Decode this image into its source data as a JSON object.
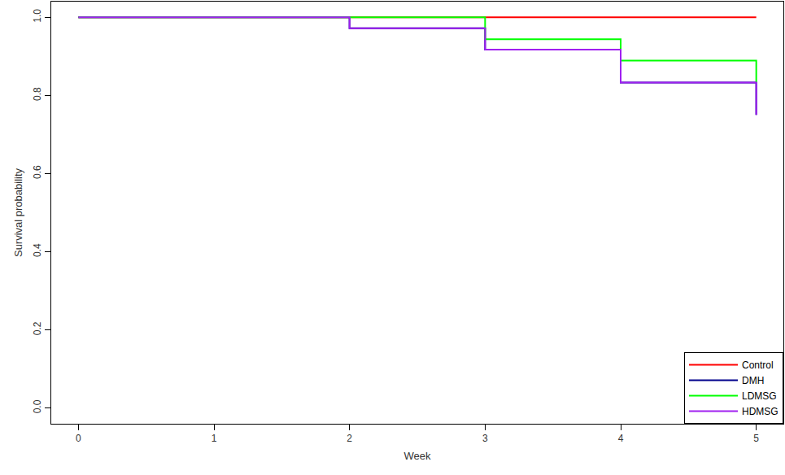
{
  "chart_data": {
    "type": "step",
    "x_label": "Week",
    "y_label": "Survival probability",
    "x": [
      0,
      1,
      2,
      3,
      4,
      5
    ],
    "series": [
      {
        "name": "Control",
        "color": "#ff0000",
        "values": [
          1,
          1,
          1,
          1,
          1,
          1
        ]
      },
      {
        "name": "DMH",
        "color": "#00008b",
        "values": [
          1,
          1,
          0.972,
          0.917,
          0.833,
          0.75
        ]
      },
      {
        "name": "LDMSG",
        "color": "#00ff00",
        "values": [
          1,
          1,
          1,
          0.944,
          0.889,
          0.833
        ]
      },
      {
        "name": "HDMSG",
        "color": "#a020f0",
        "values": [
          1,
          1,
          0.972,
          0.917,
          0.833,
          0.75
        ]
      }
    ],
    "xlim": [
      -0.2,
      5.2
    ],
    "ylim": [
      -0.04,
      1.04
    ],
    "xticks": [
      0,
      1,
      2,
      3,
      4,
      5
    ],
    "yticks": [
      {
        "value": 0,
        "label": "0.0"
      },
      {
        "value": 0.2,
        "label": "0.2"
      },
      {
        "value": 0.4,
        "label": "0.4"
      },
      {
        "value": 0.6,
        "label": "0.6"
      },
      {
        "value": 0.8,
        "label": "0.8"
      },
      {
        "value": 1,
        "label": "1.0"
      }
    ],
    "grid": false,
    "legend": "bottom right"
  }
}
